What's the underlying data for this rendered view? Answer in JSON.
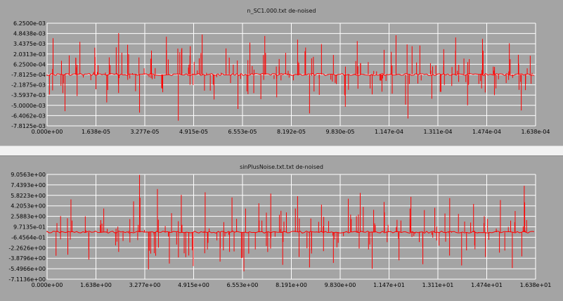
{
  "colors": {
    "background": "#a4a4a4",
    "grid": "#ffffff",
    "signal": "#ff0000",
    "separator": "#f2f2f2"
  },
  "chart_data": [
    {
      "type": "line",
      "title": "n_SC1.000.txt de-noised",
      "xlabel": "",
      "ylabel": "",
      "xlim": [
        0,
        0.0001638
      ],
      "ylim": [
        -0.0078125,
        0.00625
      ],
      "x_ticks": [
        "0.000e+00",
        "1.638e-05",
        "3.277e-05",
        "4.915e-05",
        "6.553e-05",
        "8.192e-05",
        "9.830e-05",
        "1.147e-04",
        "1.311e-04",
        "1.474e-04",
        "1.638e-04"
      ],
      "y_ticks": [
        "6.2500e-03",
        "4.8438e-03",
        "3.4375e-03",
        "2.0313e-03",
        "6.2500e-04",
        "-7.8125e-04",
        "-2.1875e-03",
        "-3.5937e-03",
        "-5.0000e-03",
        "-6.4062e-03",
        "-7.8125e-03"
      ],
      "grid": true,
      "baseline": -0.00078,
      "series": [
        {
          "x": [
            2e-06,
            6e-06,
            1.1e-05,
            1.6e-05,
            2e-05,
            2.4e-05,
            2.7e-05,
            3.1e-05,
            3.5e-05,
            4e-05,
            4.4e-05,
            4.8e-05,
            5.2e-05,
            5.6e-05,
            6e-05,
            6.4e-05,
            6.8e-05,
            7.3e-05,
            7.7e-05,
            8e-05,
            8.4e-05,
            8.8e-05,
            9.2e-05,
            9.6e-05,
            0.0001,
            0.000104,
            0.000109,
            0.000113,
            0.000117,
            0.000121,
            0.000125,
            0.000129,
            0.000133,
            0.000137,
            0.000141,
            0.000146,
            0.00015,
            0.000155,
            0.000159,
            0.000162
          ],
          "values": [
            0.0042,
            -0.0058,
            0.0037,
            0.0029,
            -0.0046,
            0.0049,
            0.0033,
            -0.006,
            0.0025,
            0.0044,
            -0.0071,
            0.0031,
            0.0047,
            -0.0042,
            0.0028,
            -0.0055,
            0.0036,
            0.0045,
            -0.0039,
            0.0022,
            0.004,
            -0.0061,
            0.0034,
            0.0019,
            -0.0052,
            0.0038,
            -0.0035,
            0.0026,
            0.0046,
            -0.0068,
            0.0032,
            -0.0041,
            0.0027,
            0.0043,
            -0.005,
            0.0041,
            -0.0036,
            0.0035,
            -0.0057,
            0.0018
          ]
        }
      ]
    },
    {
      "type": "line",
      "title": "sinPlusNoise.txt.txt de-noised",
      "xlabel": "",
      "ylabel": "",
      "xlim": [
        0,
        16.38
      ],
      "ylim": [
        -7.1136,
        9.0563
      ],
      "x_ticks": [
        "0.000e+00",
        "1.638e+00",
        "3.277e+00",
        "4.915e+00",
        "6.553e+00",
        "8.191e+00",
        "9.830e+00",
        "1.147e+01",
        "1.311e+01",
        "1.474e+01",
        "1.638e+01"
      ],
      "y_ticks": [
        "9.0563e+00",
        "7.4393e+00",
        "5.8223e+00",
        "4.2053e+00",
        "2.5883e+00",
        "9.7135e-01",
        "-6.4564e-01",
        "-2.2626e+00",
        "-3.8796e+00",
        "-5.4966e+00",
        "-7.1136e+00"
      ],
      "grid": true,
      "baseline": 0.15,
      "series": [
        {
          "x": [
            0.3,
            0.8,
            1.4,
            1.9,
            2.4,
            2.9,
            3.1,
            3.4,
            3.7,
            4.1,
            4.5,
            4.9,
            5.3,
            5.8,
            6.2,
            6.6,
            7.1,
            7.5,
            7.9,
            8.4,
            8.8,
            9.2,
            9.6,
            10.1,
            10.5,
            10.9,
            11.3,
            11.8,
            12.2,
            12.6,
            13.0,
            13.5,
            13.9,
            14.3,
            14.7,
            15.2,
            15.6,
            16.0
          ],
          "values": [
            -3.5,
            5.2,
            -4.1,
            3.8,
            -2.9,
            4.9,
            9.0,
            -5.6,
            6.8,
            -4.7,
            5.9,
            -5.1,
            6.3,
            -4.4,
            5.5,
            -5.9,
            4.6,
            6.1,
            -4.9,
            5.7,
            -5.3,
            4.4,
            -4.6,
            5.3,
            6.2,
            -5.5,
            4.8,
            -4.2,
            5.6,
            -4.8,
            3.9,
            5.4,
            -5.0,
            4.5,
            -3.7,
            5.1,
            -5.4,
            7.3
          ]
        }
      ]
    }
  ]
}
